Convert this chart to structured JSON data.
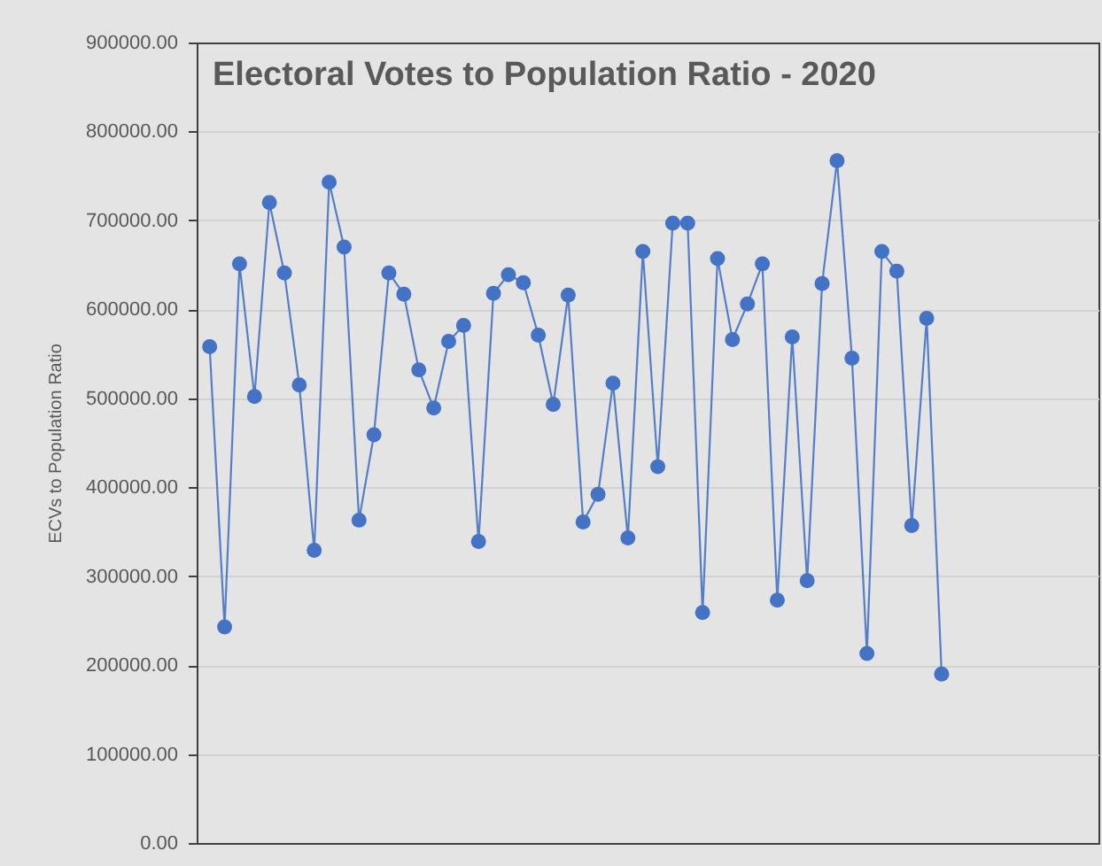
{
  "chart_data": {
    "type": "line",
    "title": "Electoral Votes to Population Ratio - 2020",
    "ylabel": "ECVs to Population Ratio",
    "categories": [
      null,
      null,
      null,
      null,
      null,
      null,
      null,
      null,
      null,
      null,
      null,
      null,
      null,
      null,
      null,
      null,
      null,
      null,
      null,
      null,
      null,
      null,
      null,
      null,
      null,
      null,
      null,
      null,
      null,
      null,
      null,
      null,
      null,
      null,
      null,
      null,
      null,
      null,
      null,
      null,
      null,
      null,
      null,
      null,
      null,
      null,
      null,
      null,
      null,
      null
    ],
    "series": [
      {
        "color": "#4472c4",
        "values": [
          558000,
          243000,
          651000,
          502000,
          720000,
          641000,
          515000,
          329000,
          743000,
          670000,
          363000,
          459000,
          641000,
          617000,
          532000,
          489000,
          564000,
          582000,
          339000,
          618000,
          639000,
          630000,
          571000,
          493000,
          616000,
          361000,
          392000,
          517000,
          343000,
          665000,
          423000,
          697000,
          697000,
          259000,
          657000,
          566000,
          606000,
          651000,
          273000,
          569000,
          295000,
          629000,
          767000,
          545000,
          213000,
          665000,
          643000,
          357000,
          590000,
          190000
        ]
      }
    ],
    "ylim": [
      0,
      900000
    ],
    "yticks": [
      {
        "value": 0,
        "label": "0.00"
      },
      {
        "value": 100000,
        "label": "100000.00"
      },
      {
        "value": 200000,
        "label": "200000.00"
      },
      {
        "value": 300000,
        "label": "300000.00"
      },
      {
        "value": 400000,
        "label": "400000.00"
      },
      {
        "value": 500000,
        "label": "500000.00"
      },
      {
        "value": 600000,
        "label": "600000.00"
      },
      {
        "value": 700000,
        "label": "700000.00"
      },
      {
        "value": 800000,
        "label": "800000.00"
      },
      {
        "value": 900000,
        "label": "900000.00"
      }
    ],
    "grid": "y",
    "marker": "circle",
    "tick_labels": "y"
  }
}
